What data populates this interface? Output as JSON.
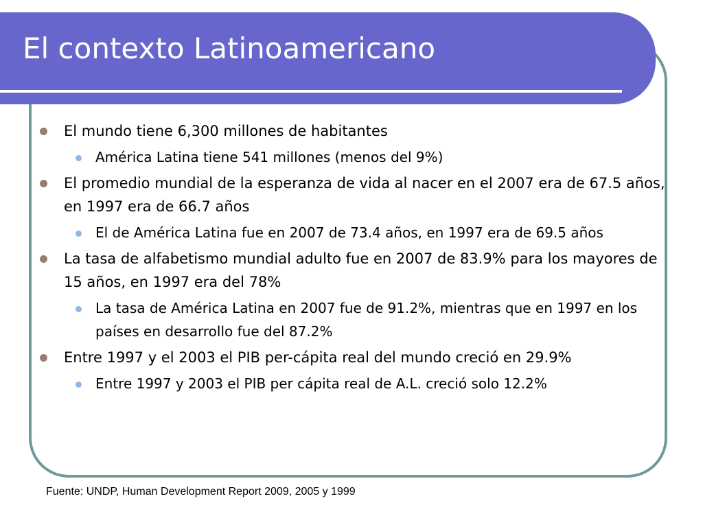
{
  "title": "El contexto Latinoamericano",
  "items": [
    {
      "level": 1,
      "text": "El mundo tiene 6,300 millones de habitantes"
    },
    {
      "level": 2,
      "text": "América Latina tiene 541 millones (menos del 9%)"
    },
    {
      "level": 1,
      "text": "El promedio mundial de la esperanza de vida al nacer en el 2007 era de 67.5 años, en 1997 era de 66.7 años"
    },
    {
      "level": 2,
      "text": "El de América Latina fue en 2007 de 73.4 años, en 1997 era de 69.5 años"
    },
    {
      "level": 1,
      "text": "La tasa de alfabetismo mundial adulto fue en 2007 de 83.9% para los mayores de 15 años, en 1997 era del 78%"
    },
    {
      "level": 2,
      "text": "La tasa de América Latina en 2007 fue de 91.2%, mientras que en 1997 en los países en desarrollo fue del 87.2%"
    },
    {
      "level": 1,
      "text": "Entre 1997 y el 2003 el PIB  per-cápita real del mundo creció en 29.9%"
    },
    {
      "level": 2,
      "text": "Entre 1997 y 2003 el PIB per cápita real de A.L. creció solo 12.2%"
    }
  ],
  "source": "Fuente: UNDP, Human Development Report 2009, 2005 y 1999",
  "colors": {
    "title_bar": "#6666cc",
    "frame": "#6f9a9a",
    "bullet_level1": "#9b7a74",
    "bullet_level2": "#8fb8e8"
  }
}
